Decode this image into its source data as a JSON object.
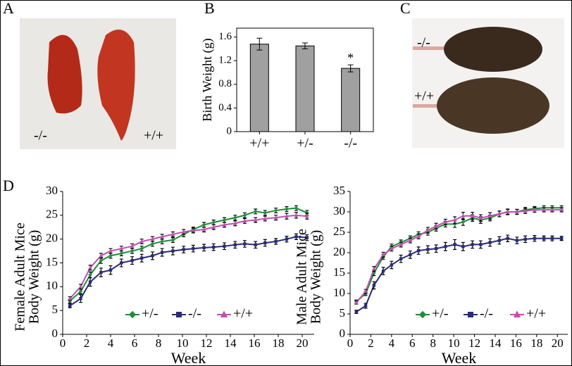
{
  "panel_labels": [
    "A",
    "B",
    "C",
    "D"
  ],
  "photo_a_labels": [
    "-/-",
    "+/+"
  ],
  "photo_c_labels": [
    "-/-",
    "+/+"
  ],
  "chart_data": [
    {
      "type": "bar",
      "ylabel": "Birth Weight (g)",
      "categories": [
        "+/+",
        "+/-",
        "-/-"
      ],
      "values": [
        1.48,
        1.45,
        1.07
      ],
      "errors": [
        0.1,
        0.05,
        0.06
      ],
      "color": "#a0a0a0",
      "annotation": "*",
      "ylim": [
        0,
        1.75
      ],
      "yticks": [
        0,
        0.4,
        0.8,
        1.2,
        1.6
      ]
    },
    {
      "type": "line",
      "ylabel": [
        "Female Adult Mice",
        "Body Weight (g)"
      ],
      "xlabel": "Week",
      "x": [
        0.6,
        1.5,
        2.3,
        3.2,
        4.0,
        4.9,
        5.8,
        6.6,
        7.5,
        8.3,
        9.2,
        10.1,
        10.9,
        11.8,
        12.6,
        13.5,
        14.4,
        15.2,
        16.1,
        16.9,
        17.8,
        18.7,
        19.5,
        20.4
      ],
      "xlim": [
        0,
        21
      ],
      "xticks": [
        0,
        2,
        4,
        6,
        8,
        10,
        12,
        14,
        16,
        18,
        20
      ],
      "ylim": [
        0,
        30
      ],
      "yticks": [
        0,
        5,
        10,
        15,
        20,
        25,
        30
      ],
      "series": [
        {
          "name": "+/-",
          "color": "#1e8c3a",
          "marker": "diamond",
          "values": [
            7,
            9,
            12.5,
            15.5,
            16.5,
            17,
            17.5,
            18,
            19,
            19.5,
            19.8,
            21,
            22,
            23,
            23.5,
            24,
            24.5,
            25,
            25.8,
            25.5,
            26,
            26.3,
            26.5,
            25.5
          ],
          "errors": [
            0.4,
            0.5,
            0.6,
            0.6,
            0.5,
            0.5,
            0.5,
            0.5,
            0.5,
            0.5,
            0.5,
            0.5,
            0.5,
            0.5,
            0.5,
            0.5,
            0.5,
            0.5,
            0.5,
            0.5,
            0.5,
            0.5,
            0.5,
            0.5
          ]
        },
        {
          "name": "-/-",
          "color": "#2b2b7a",
          "marker": "square",
          "values": [
            6,
            7.5,
            11,
            13,
            13.5,
            15,
            15.5,
            16,
            16.5,
            17.2,
            17.5,
            17.8,
            18,
            18.2,
            18.3,
            18.5,
            18.8,
            19,
            18.8,
            19.2,
            19.5,
            20,
            20.5,
            20.3
          ],
          "errors": [
            0.4,
            0.8,
            0.9,
            0.9,
            0.9,
            0.8,
            0.8,
            0.8,
            0.8,
            0.8,
            0.8,
            0.7,
            0.7,
            0.7,
            0.7,
            0.7,
            0.7,
            0.7,
            0.7,
            0.7,
            0.6,
            0.6,
            0.6,
            0.6
          ]
        },
        {
          "name": "+/+",
          "color": "#c050b0",
          "marker": "triangle",
          "values": [
            7.5,
            10,
            14,
            16.5,
            17.5,
            18,
            18.5,
            19.5,
            20,
            20.5,
            21,
            21.5,
            21.8,
            22,
            22.5,
            23,
            23.3,
            23.8,
            24,
            24.3,
            24.5,
            24.8,
            25,
            24.8
          ],
          "errors": [
            0.4,
            0.5,
            0.5,
            0.5,
            0.5,
            0.5,
            0.5,
            0.5,
            0.5,
            0.5,
            0.5,
            0.5,
            0.5,
            0.5,
            0.5,
            0.5,
            0.5,
            0.5,
            0.5,
            0.5,
            0.5,
            0.6,
            0.6,
            0.6
          ]
        }
      ]
    },
    {
      "type": "line",
      "ylabel": [
        "Male Adult Mice",
        "Body Weight (g)"
      ],
      "xlabel": "Week",
      "x": [
        0.6,
        1.5,
        2.3,
        3.2,
        4.0,
        4.9,
        5.8,
        6.6,
        7.5,
        8.3,
        9.2,
        10.1,
        10.9,
        11.8,
        12.6,
        13.5,
        14.4,
        15.2,
        16.1,
        16.9,
        17.8,
        18.7,
        19.5,
        20.4
      ],
      "xlim": [
        0,
        21
      ],
      "xticks": [
        0,
        2,
        4,
        6,
        8,
        10,
        12,
        14,
        16,
        18,
        20
      ],
      "ylim": [
        0,
        35
      ],
      "yticks": [
        0,
        5,
        10,
        15,
        20,
        25,
        30,
        35
      ],
      "series": [
        {
          "name": "+/-",
          "color": "#1e8c3a",
          "marker": "diamond",
          "values": [
            8,
            10,
            15,
            19,
            21.5,
            22.5,
            23.5,
            24.5,
            25,
            26,
            27,
            27,
            27.5,
            28.5,
            28,
            28.5,
            29.5,
            30,
            30,
            30.5,
            30.8,
            31,
            31,
            31
          ],
          "errors": [
            0.4,
            0.5,
            0.6,
            0.6,
            0.6,
            0.6,
            0.6,
            0.6,
            0.7,
            0.7,
            0.7,
            0.8,
            0.8,
            0.8,
            0.8,
            0.7,
            0.7,
            0.6,
            0.6,
            0.6,
            0.5,
            0.5,
            0.5,
            0.5
          ]
        },
        {
          "name": "-/-",
          "color": "#2b2b7a",
          "marker": "square",
          "values": [
            5.5,
            7,
            12,
            15.5,
            17,
            18.5,
            19.5,
            20.5,
            20.8,
            21,
            21.5,
            22,
            21.5,
            22,
            22,
            22.5,
            23,
            23.5,
            23,
            23.3,
            23.5,
            23.5,
            23.5,
            23.5
          ],
          "errors": [
            0.4,
            0.6,
            0.9,
            0.9,
            0.9,
            0.9,
            0.9,
            0.9,
            0.9,
            0.9,
            1.0,
            1.2,
            1.0,
            0.9,
            0.9,
            0.9,
            0.9,
            0.8,
            0.8,
            0.8,
            0.7,
            0.6,
            0.6,
            0.5
          ]
        },
        {
          "name": "+/+",
          "color": "#c050b0",
          "marker": "triangle",
          "values": [
            7.8,
            10.5,
            16,
            19.5,
            21,
            22,
            23,
            24,
            25.5,
            26.5,
            27.5,
            28,
            29,
            29,
            28.5,
            29,
            29.5,
            30,
            30,
            30.2,
            30.5,
            30.5,
            30.5,
            30.5
          ],
          "errors": [
            0.4,
            0.5,
            0.6,
            0.6,
            0.6,
            0.6,
            0.6,
            0.6,
            0.7,
            0.7,
            0.7,
            0.8,
            0.9,
            0.9,
            0.8,
            0.8,
            0.7,
            0.7,
            0.6,
            0.6,
            0.6,
            0.5,
            0.5,
            0.5
          ]
        }
      ]
    }
  ]
}
